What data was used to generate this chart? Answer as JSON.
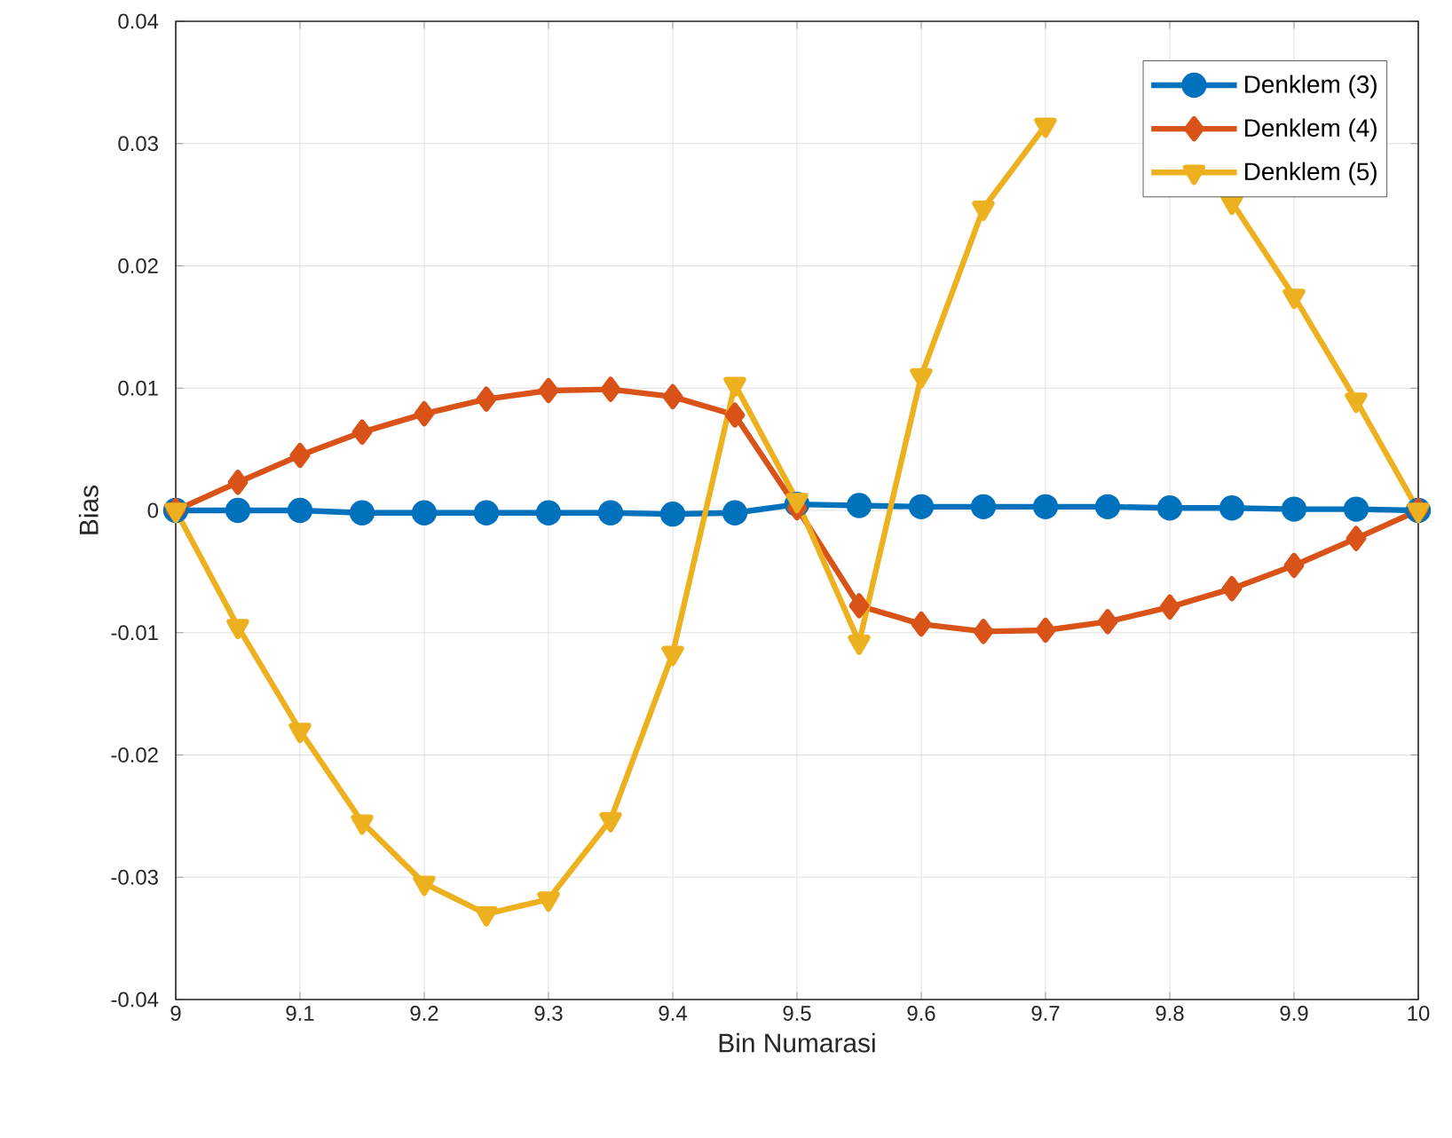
{
  "chart_data": {
    "type": "line",
    "xlabel": "Bin Numarasi",
    "ylabel": "Bias",
    "x": [
      9,
      9.05,
      9.1,
      9.15,
      9.2,
      9.25,
      9.3,
      9.35,
      9.4,
      9.45,
      9.5,
      9.55,
      9.6,
      9.65,
      9.7,
      9.75,
      9.8,
      9.85,
      9.9,
      9.95,
      10
    ],
    "series": [
      {
        "name": "Denklem (3)",
        "color": "#0072bd",
        "marker": "circle",
        "values": [
          0,
          0,
          0,
          -0.0002,
          -0.0002,
          -0.0002,
          -0.0002,
          -0.0002,
          -0.0003,
          -0.0002,
          0.0005,
          0.0004,
          0.0003,
          0.0003,
          0.0003,
          0.0003,
          0.0002,
          0.0002,
          0.0001,
          0.0001,
          0
        ]
      },
      {
        "name": "Denklem (4)",
        "color": "#d95319",
        "marker": "diamond",
        "values": [
          0,
          0.0023,
          0.0045,
          0.0064,
          0.0079,
          0.0091,
          0.0098,
          0.0099,
          0.0093,
          0.0078,
          0.0002,
          -0.0078,
          -0.0093,
          -0.0099,
          -0.0098,
          -0.0091,
          -0.0079,
          -0.0064,
          -0.0045,
          -0.0023,
          0
        ]
      },
      {
        "name": "Denklem (5)",
        "color": "#edb120",
        "marker": "triangle",
        "values": [
          0,
          -0.0095,
          -0.018,
          -0.0255,
          -0.0305,
          -0.033,
          -0.0318,
          -0.0253,
          -0.0117,
          0.0103,
          0.0008,
          -0.0108,
          0.011,
          0.0247,
          0.0315,
          null,
          null,
          0.0252,
          0.0175,
          0.009,
          0
        ]
      }
    ],
    "xlim": [
      9,
      10
    ],
    "ylim": [
      -0.04,
      0.04
    ],
    "xticks": [
      9,
      9.1,
      9.2,
      9.3,
      9.4,
      9.5,
      9.6,
      9.7,
      9.8,
      9.9,
      10
    ],
    "yticks": [
      -0.04,
      -0.03,
      -0.02,
      -0.01,
      0,
      0.01,
      0.02,
      0.03,
      0.04
    ],
    "grid": true,
    "legend": "top right",
    "line_style": "solid"
  }
}
